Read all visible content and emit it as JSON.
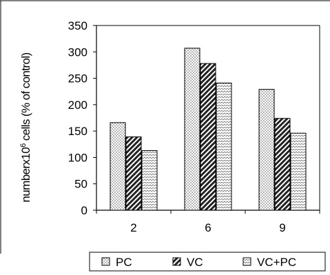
{
  "chart_data": {
    "type": "bar",
    "title": "",
    "xlabel": "",
    "ylabel": {
      "prefix": "numberx10",
      "superscript": "6",
      "suffix": " cells (% of control)"
    },
    "categories": [
      "2",
      "6",
      "9"
    ],
    "ylim": [
      0,
      350
    ],
    "yticks": [
      0,
      50,
      100,
      150,
      200,
      250,
      300,
      350
    ],
    "grid": false,
    "legend_position": "bottom",
    "series": [
      {
        "name": "PC",
        "values": [
          166,
          307,
          229
        ],
        "pattern": "dots"
      },
      {
        "name": "VC",
        "values": [
          139,
          278,
          174
        ],
        "pattern": "diagonal-stripes"
      },
      {
        "name": "VC+PC",
        "values": [
          113,
          241,
          146
        ],
        "pattern": "zigzag"
      }
    ]
  }
}
